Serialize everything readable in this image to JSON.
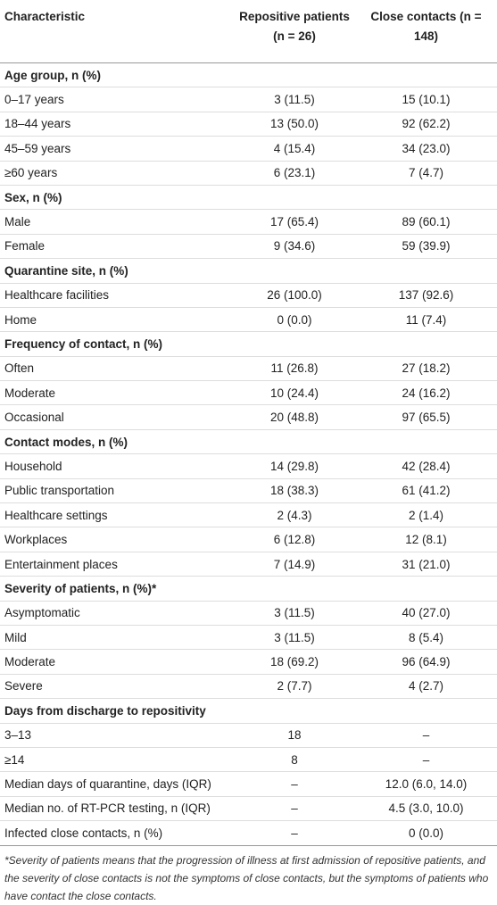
{
  "table": {
    "header": [
      "Characteristic",
      "Repositive patients (n = 26)",
      "Close contacts (n = 148)"
    ],
    "rows": [
      [
        "Age group, n (%)"
      ],
      [
        "0–17 years",
        "3 (11.5)",
        "15 (10.1)"
      ],
      [
        "18–44 years",
        "13 (50.0)",
        "92 (62.2)"
      ],
      [
        "45–59 years",
        "4 (15.4)",
        "34 (23.0)"
      ],
      [
        "≥60 years",
        "6 (23.1)",
        "7 (4.7)"
      ],
      [
        "Sex, n (%)"
      ],
      [
        "Male",
        "17 (65.4)",
        "89 (60.1)"
      ],
      [
        "Female",
        "9 (34.6)",
        "59 (39.9)"
      ],
      [
        "Quarantine site, n (%)"
      ],
      [
        "Healthcare facilities",
        "26 (100.0)",
        "137 (92.6)"
      ],
      [
        "Home",
        "0 (0.0)",
        "11 (7.4)"
      ],
      [
        "Frequency of contact, n (%)"
      ],
      [
        "Often",
        "11 (26.8)",
        "27 (18.2)"
      ],
      [
        "Moderate",
        "10 (24.4)",
        "24 (16.2)"
      ],
      [
        "Occasional",
        "20 (48.8)",
        "97 (65.5)"
      ],
      [
        "Contact modes, n (%)"
      ],
      [
        "Household",
        "14 (29.8)",
        "42 (28.4)"
      ],
      [
        "Public transportation",
        "18 (38.3)",
        "61 (41.2)"
      ],
      [
        "Healthcare settings",
        "2 (4.3)",
        "2 (1.4)"
      ],
      [
        "Workplaces",
        "6 (12.8)",
        "12 (8.1)"
      ],
      [
        "Entertainment places",
        "7 (14.9)",
        "31 (21.0)"
      ],
      [
        "Severity of patients, n (%)*"
      ],
      [
        "Asymptomatic",
        "3 (11.5)",
        "40 (27.0)"
      ],
      [
        "Mild",
        "3 (11.5)",
        "8 (5.4)"
      ],
      [
        "Moderate",
        "18 (69.2)",
        "96 (64.9)"
      ],
      [
        "Severe",
        "2 (7.7)",
        "4 (2.7)"
      ],
      [
        "Days from discharge to repositivity"
      ],
      [
        "3–13",
        "18",
        "–"
      ],
      [
        "≥14",
        "8",
        "–"
      ],
      [
        "Median days of quarantine, days (IQR)",
        "–",
        "12.0 (6.0, 14.0)"
      ],
      [
        "Median no. of RT-PCR testing, n (IQR)",
        "–",
        "4.5 (3.0, 10.0)"
      ],
      [
        "Infected close contacts, n (%)",
        "–",
        "0 (0.0)"
      ]
    ],
    "footnote": "*Severity of patients means that the progression of illness at first admission of repositive patients, and the severity of close contacts is not the symptoms of close contacts, but the symptoms of patients who have contact the close contacts."
  }
}
